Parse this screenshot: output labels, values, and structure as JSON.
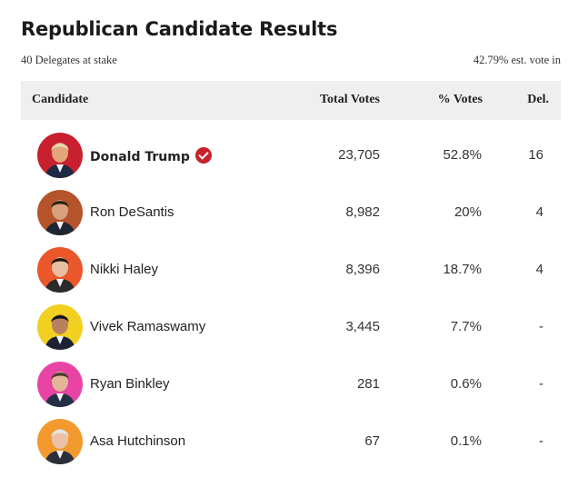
{
  "header": {
    "title": "Republican Candidate Results",
    "delegates": "40 Delegates at stake",
    "reporting": "42.79% est. vote in"
  },
  "table": {
    "columns": [
      "Candidate",
      "Total Votes",
      "% Votes",
      "Del."
    ],
    "rows": [
      {
        "name": "Donald Trump",
        "votes": "23,705",
        "pct": "52.8%",
        "del": "16",
        "winner": true,
        "color": "#c8202e",
        "icon": "check-circle"
      },
      {
        "name": "Ron DeSantis",
        "votes": "8,982",
        "pct": "20%",
        "del": "4",
        "winner": false,
        "color": "#b5542a"
      },
      {
        "name": "Nikki Haley",
        "votes": "8,396",
        "pct": "18.7%",
        "del": "4",
        "winner": false,
        "color": "#e9572b"
      },
      {
        "name": "Vivek Ramaswamy",
        "votes": "3,445",
        "pct": "7.7%",
        "del": "-",
        "winner": false,
        "color": "#f2d022"
      },
      {
        "name": "Ryan Binkley",
        "votes": "281",
        "pct": "0.6%",
        "del": "-",
        "winner": false,
        "color": "#e844a6"
      },
      {
        "name": "Asa Hutchinson",
        "votes": "67",
        "pct": "0.1%",
        "del": "-",
        "winner": false,
        "color": "#f39a2e"
      }
    ]
  }
}
